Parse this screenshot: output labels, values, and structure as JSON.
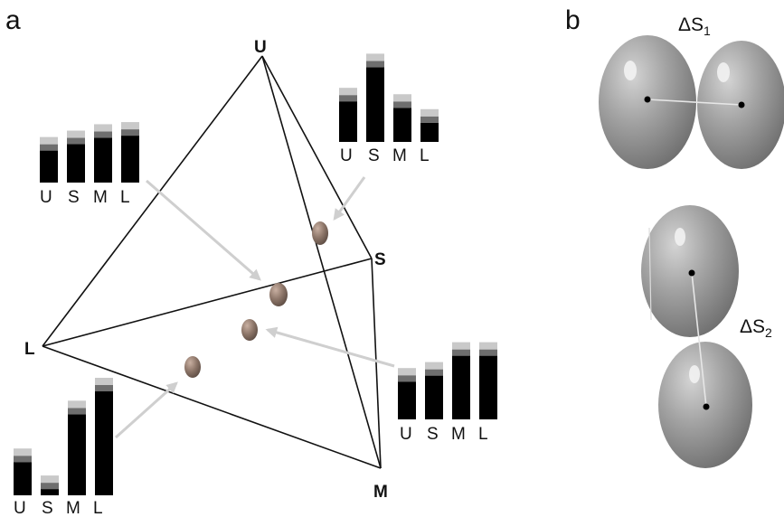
{
  "panel_a": {
    "letter": "a",
    "vertices": {
      "U": "U",
      "S": "S",
      "L": "L",
      "M": "M"
    },
    "histograms": [
      {
        "id": "top-left",
        "categories": [
          "U",
          "S",
          "M",
          "L"
        ],
        "values": [
          0.3,
          0.36,
          0.42,
          0.44
        ]
      },
      {
        "id": "top-right",
        "categories": [
          "U",
          "S",
          "M",
          "L"
        ],
        "values": [
          0.38,
          0.7,
          0.32,
          0.18
        ]
      },
      {
        "id": "bottom-left",
        "categories": [
          "U",
          "S",
          "M",
          "L"
        ],
        "values": [
          0.32,
          0.06,
          0.78,
          1.0
        ]
      },
      {
        "id": "bottom-right",
        "categories": [
          "U",
          "S",
          "M",
          "L"
        ],
        "values": [
          0.38,
          0.44,
          0.64,
          0.64
        ]
      }
    ]
  },
  "panel_b": {
    "letter": "b",
    "label_1_main": "ΔS",
    "label_1_sub": "1",
    "label_2_main": "ΔS",
    "label_2_sub": "2"
  },
  "colors": {
    "bar_main": "#000000",
    "bar_mid": "#6e6e6e",
    "bar_top": "#c9c9c9",
    "arrow": "#cfcfcf",
    "edge": "#111111",
    "ellipsoid": "#8a8a8a"
  }
}
